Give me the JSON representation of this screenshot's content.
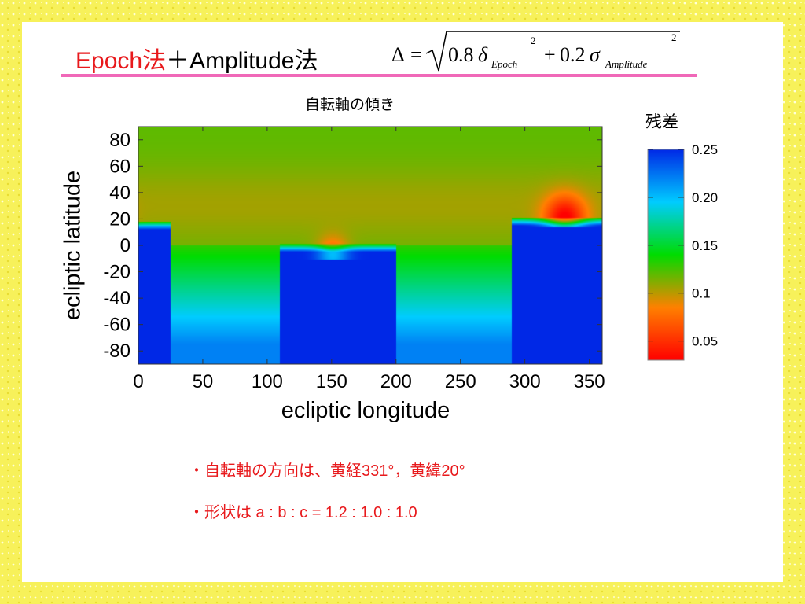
{
  "slide": {
    "title_red_1": "Epoch法",
    "title_black_1": "＋Amplitude法",
    "formula_lhs": "Δ",
    "formula_eq": "=",
    "formula_c1": "0.8",
    "formula_delta": "δ",
    "formula_sub1": "Epoch",
    "formula_sq": "2",
    "formula_plus": "+",
    "formula_c2": "0.2",
    "formula_sigma": "σ",
    "formula_sub2": "Amplitude",
    "notes": [
      "・自転軸の方向は、黄経331°，黄緯20°",
      "・形状は a : b : c = 1.2 : 1.0 : 1.0"
    ]
  },
  "colors": {
    "border": "#f7f15a",
    "accent_red": "#e8191c",
    "underline_pink": "#f068b8"
  },
  "chart_data": {
    "type": "heatmap",
    "title": "自転軸の傾き",
    "xlabel": "ecliptic  longitude",
    "ylabel": "ecliptic  latitude",
    "xlim": [
      0,
      360
    ],
    "ylim": [
      -90,
      90
    ],
    "xticks": [
      0,
      50,
      100,
      150,
      200,
      250,
      300,
      350
    ],
    "yticks": [
      80,
      60,
      40,
      20,
      0,
      -20,
      -40,
      -60,
      -80
    ],
    "colorbar": {
      "title": "残差",
      "ticks": [
        "0.25",
        "0.20",
        "0.15",
        "0.1",
        "0.05"
      ],
      "range": [
        0.03,
        0.25
      ],
      "colormap": [
        "#ff0000",
        "#ff8000",
        "#00dc00",
        "#00ccff",
        "#0028e6"
      ]
    },
    "minimum": {
      "longitude": 331,
      "latitude": 20,
      "residual": 0.05
    },
    "secondary_minimum": {
      "longitude": 151,
      "latitude": -7,
      "residual": 0.08
    },
    "high_region": [
      {
        "longitude_range": [
          0,
          25
        ],
        "latitude_range": [
          -90,
          12
        ]
      },
      {
        "longitude_range": [
          110,
          200
        ],
        "latitude_range": [
          -90,
          -5
        ]
      },
      {
        "longitude_range": [
          290,
          360
        ],
        "latitude_range": [
          -90,
          15
        ]
      }
    ]
  }
}
